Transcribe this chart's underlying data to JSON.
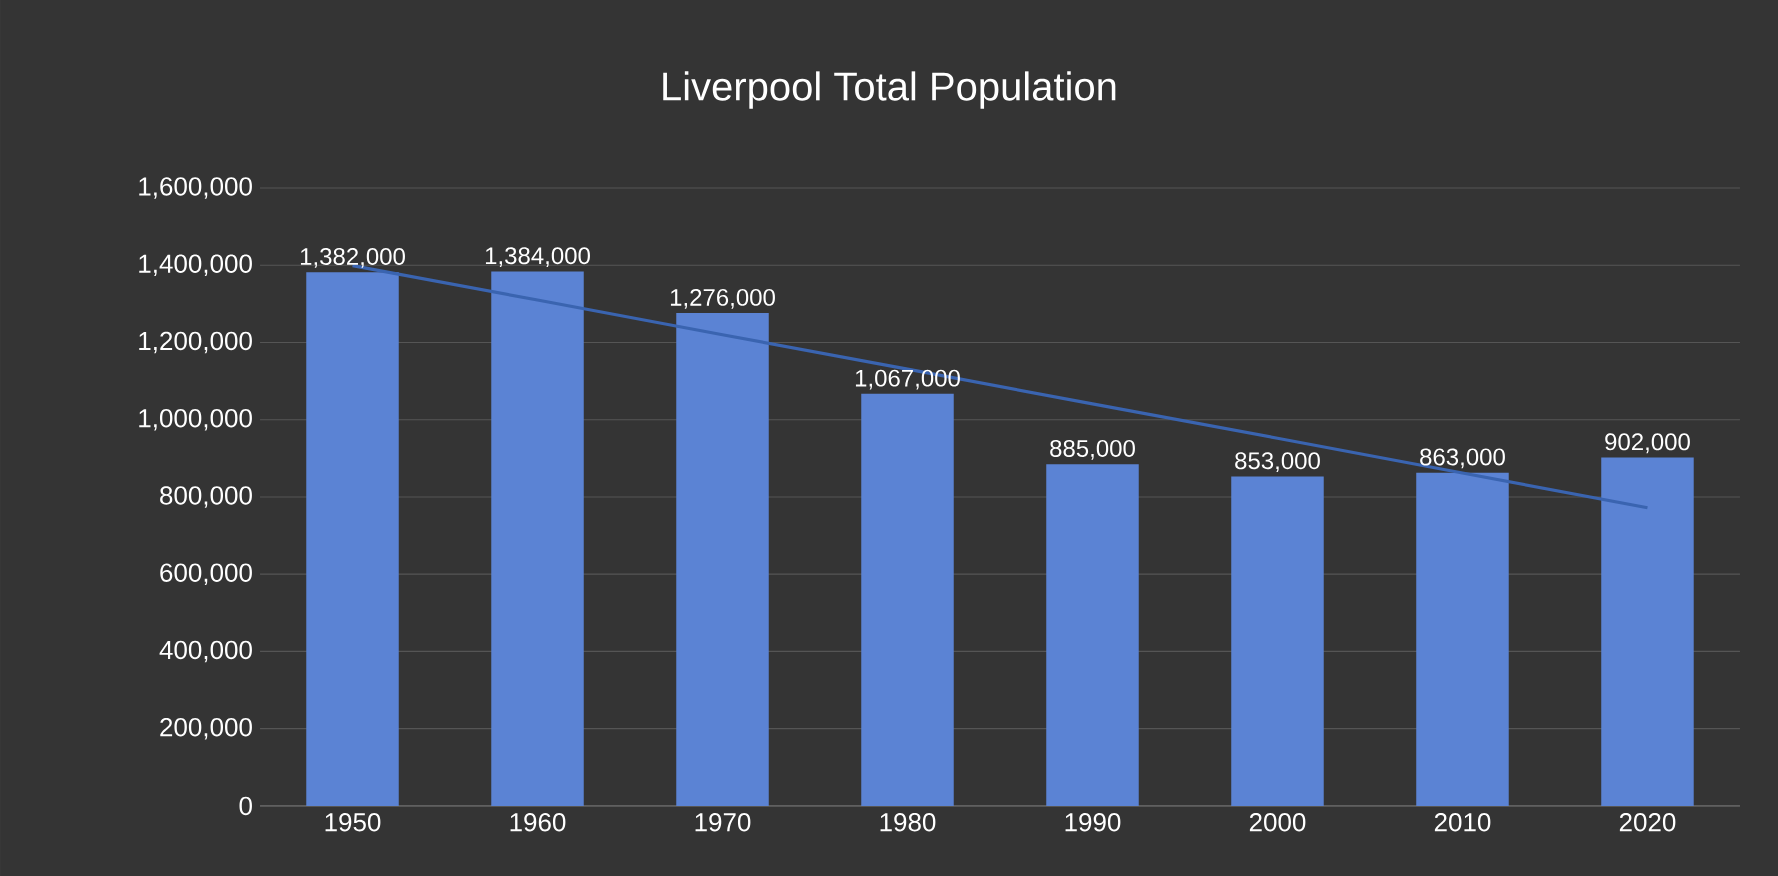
{
  "chart_data": {
    "type": "bar",
    "title": "Liverpool Total Population",
    "categories": [
      "1950",
      "1960",
      "1970",
      "1980",
      "1990",
      "2000",
      "2010",
      "2020"
    ],
    "series": [
      {
        "color": "#5b83d4",
        "values": [
          1382000,
          1384000,
          1276000,
          1067000,
          885000,
          853000,
          863000,
          902000
        ],
        "value_labels": [
          "1,382,000",
          "1,384,000",
          "1,276,000",
          "1,067,000",
          "885,000",
          "853,000",
          "863,000",
          "902,000"
        ]
      },
      {
        "type": "line",
        "color": "#3a64b0",
        "values": [
          1399000,
          1310000,
          1220000,
          1131000,
          1041000,
          952000,
          862000,
          772000
        ]
      }
    ],
    "ylim": [
      0,
      1600000
    ],
    "yticks": [
      {
        "value": 0,
        "label": "0"
      },
      {
        "value": 200000,
        "label": "200,000"
      },
      {
        "value": 400000,
        "label": "400,000"
      },
      {
        "value": 600000,
        "label": "600,000"
      },
      {
        "value": 800000,
        "label": "800,000"
      },
      {
        "value": 1000000,
        "label": "1,000,000"
      },
      {
        "value": 1200000,
        "label": "1,200,000"
      },
      {
        "value": 1400000,
        "label": "1,400,000"
      },
      {
        "value": 1600000,
        "label": "1,600,000"
      }
    ],
    "grid": "y"
  }
}
